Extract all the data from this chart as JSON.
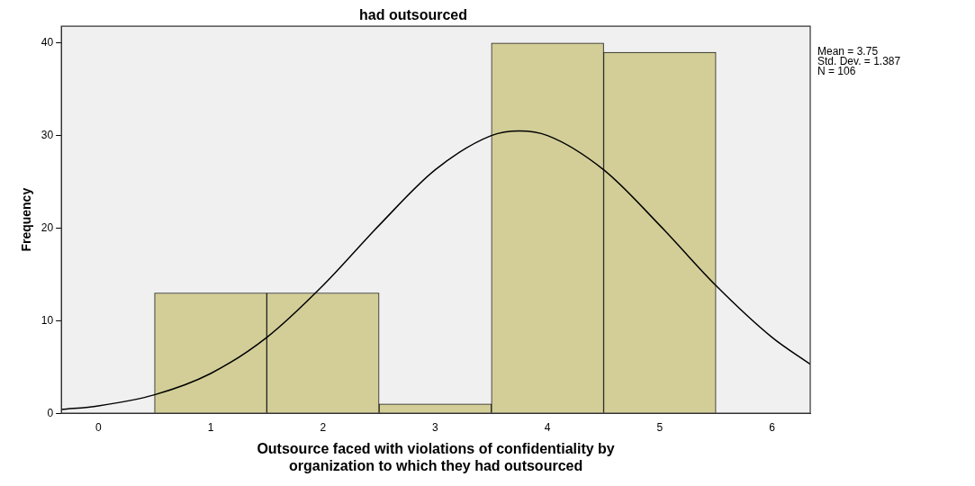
{
  "chart_data": {
    "type": "histogram",
    "title": "had outsourced",
    "xlabel": "Outsource faced with violations of confidentiality by\norganization to which they had outsourced",
    "ylabel": "Frequency",
    "bins": [
      0.5,
      1.5,
      2.5,
      3.5,
      4.5,
      5.5
    ],
    "values": [
      13,
      13,
      1,
      40,
      39
    ],
    "color": "#d3ce97",
    "series": [
      {
        "type": "line",
        "color": "#000000",
        "x": [
          -0.33,
          0,
          0.5,
          1,
          1.5,
          2,
          2.5,
          3,
          3.5,
          3.75,
          4,
          4.5,
          5,
          5.5,
          6,
          6.34
        ],
        "values": [
          0.4,
          0.8,
          2,
          4.3,
          8.2,
          13.8,
          20.3,
          26.3,
          30,
          30.5,
          30,
          26.3,
          20.3,
          13.8,
          8.2,
          5.3
        ]
      }
    ],
    "xlim": [
      -0.33,
      6.34
    ],
    "xticks": [
      0,
      1,
      2,
      3,
      4,
      5,
      6
    ],
    "ylim": [
      0,
      41.8
    ],
    "yticks": [
      0,
      10,
      20,
      30,
      40
    ],
    "grid": false,
    "legend": false,
    "marker": "none",
    "annotations": [
      "Mean = 3.75\nStd. Dev. = 1.387\nN = 106"
    ]
  }
}
